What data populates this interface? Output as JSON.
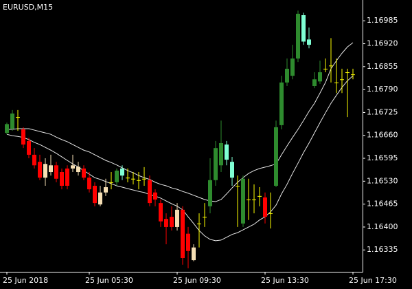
{
  "chart_data": {
    "type": "candlestick",
    "title": "EURUSD,M15",
    "categories": [
      "25 Jun 2018",
      null,
      null,
      null,
      null,
      null,
      null,
      null,
      null,
      null,
      null,
      null,
      null,
      null,
      null,
      "25 Jun 05:30",
      null,
      null,
      null,
      null,
      null,
      null,
      null,
      null,
      null,
      null,
      null,
      null,
      null,
      null,
      null,
      "25 Jun 09:30",
      null,
      null,
      null,
      null,
      null,
      null,
      null,
      null,
      null,
      null,
      null,
      null,
      null,
      null,
      null,
      "25 Jun 13:30",
      null,
      null,
      null,
      null,
      null,
      null,
      null,
      null,
      null,
      null,
      null,
      null,
      null,
      null,
      null,
      "25 Jun 17:30"
    ],
    "open": [
      1.16667,
      1.16679,
      1.16712,
      1.16677,
      1.16644,
      1.16605,
      1.16585,
      1.1654,
      1.16556,
      1.16575,
      1.16556,
      1.16566,
      1.16566,
      1.16556,
      1.16566,
      1.1654,
      1.16517,
      1.16464,
      1.16498,
      1.16527,
      1.16527,
      1.16546,
      1.1654,
      1.16537,
      1.16533,
      1.16537,
      1.16533,
      1.16498,
      1.16468,
      1.16423,
      1.16429,
      1.164,
      1.16449,
      1.16381,
      1.16306,
      1.1641,
      1.16429,
      1.16459,
      1.16533,
      1.16575,
      1.16591,
      1.1654,
      1.16517,
      1.1641,
      1.16478,
      1.16478,
      1.16488,
      1.16484,
      1.16439,
      1.16517,
      1.16689,
      1.1681,
      1.16829,
      1.16878,
      1.16926,
      1.16917,
      1.168,
      1.16813,
      1.16849,
      1.16858,
      1.1681,
      1.16819,
      1.16839,
      1.16833
    ],
    "high": [
      1.16696,
      1.16732,
      1.16732,
      1.16683,
      1.16653,
      1.16624,
      1.16605,
      1.16595,
      1.16605,
      1.16585,
      1.16566,
      1.16575,
      1.16605,
      1.16585,
      1.16575,
      1.16556,
      1.16527,
      1.16517,
      1.16537,
      1.16556,
      1.16566,
      1.16575,
      1.16566,
      1.16556,
      1.16556,
      1.1657,
      1.16546,
      1.16507,
      1.16478,
      1.16439,
      1.16459,
      1.16468,
      1.16459,
      1.164,
      1.16351,
      1.16439,
      1.16468,
      1.16595,
      1.16644,
      1.16702,
      1.16644,
      1.16599,
      1.16546,
      1.16546,
      1.16537,
      1.16521,
      1.16513,
      1.16498,
      1.16498,
      1.16702,
      1.16829,
      1.16878,
      1.16917,
      1.17014,
      1.17008,
      1.16966,
      1.16839,
      1.16872,
      1.16878,
      1.16936,
      1.16878,
      1.16849,
      1.16849,
      1.16849
    ],
    "low": [
      1.16663,
      1.16673,
      1.16673,
      1.16624,
      1.16595,
      1.16566,
      1.16533,
      1.16517,
      1.16546,
      1.16527,
      1.16507,
      1.16507,
      1.16556,
      1.16546,
      1.16533,
      1.16498,
      1.16459,
      1.16459,
      1.16488,
      1.16507,
      1.16517,
      1.16533,
      1.16527,
      1.16521,
      1.16507,
      1.16517,
      1.16459,
      1.16459,
      1.164,
      1.16351,
      1.1639,
      1.1639,
      1.16293,
      1.16283,
      1.16303,
      1.16342,
      1.164,
      1.16439,
      1.16517,
      1.16556,
      1.16575,
      1.16517,
      1.164,
      1.164,
      1.1642,
      1.16439,
      1.16459,
      1.1641,
      1.16396,
      1.16513,
      1.16677,
      1.168,
      1.16819,
      1.16868,
      1.16917,
      1.16907,
      1.16794,
      1.16806,
      1.16839,
      1.1681,
      1.1678,
      1.1678,
      1.16712,
      1.16819
    ],
    "close": [
      1.16692,
      1.16722,
      1.16712,
      1.16634,
      1.16605,
      1.16575,
      1.1654,
      1.16579,
      1.16575,
      1.16537,
      1.16517,
      1.16517,
      1.16575,
      1.16571,
      1.1654,
      1.16507,
      1.16468,
      1.16498,
      1.16513,
      1.16527,
      1.1656,
      1.16566,
      1.1654,
      1.16537,
      1.16533,
      1.16537,
      1.16468,
      1.16478,
      1.16416,
      1.164,
      1.164,
      1.16449,
      1.16312,
      1.16332,
      1.16342,
      1.1641,
      1.16429,
      1.16533,
      1.16624,
      1.16638,
      1.16634,
      1.16585,
      1.16517,
      1.16537,
      1.16478,
      1.16478,
      1.16488,
      1.16429,
      1.16439,
      1.16683,
      1.1681,
      1.16849,
      1.16878,
      1.17005,
      1.17001,
      1.16932,
      1.16819,
      1.16839,
      1.16849,
      1.16858,
      1.1681,
      1.16819,
      1.16839,
      1.16833
    ],
    "colors": [
      "#2e8b2e",
      "#2e8b2e",
      "#ffff00",
      "#ff0000",
      "#ff0000",
      "#ff0000",
      "#ff0000",
      "#f5deb3",
      "#f5deb3",
      "#ff0000",
      "#ff0000",
      "#ff0000",
      "#f5deb3",
      "#f5deb3",
      "#ff0000",
      "#ff0000",
      "#ff0000",
      "#f5deb3",
      "#f5deb3",
      "#ffff00",
      "#2e8b2e",
      "#7fffd4",
      "#ffff00",
      "#ffff00",
      "#ffff00",
      "#ffff00",
      "#ff0000",
      "#ff0000",
      "#ff0000",
      "#ff0000",
      "#ff0000",
      "#f5deb3",
      "#ff0000",
      "#ff0000",
      "#f5deb3",
      "#ffff00",
      "#ffff00",
      "#2e8b2e",
      "#2e8b2e",
      "#2e8b2e",
      "#7fffd4",
      "#7fffd4",
      "#ffff00",
      "#2e8b2e",
      "#ffff00",
      "#ffff00",
      "#ffff00",
      "#ff0000",
      "#ffff00",
      "#2e8b2e",
      "#2e8b2e",
      "#2e8b2e",
      "#2e8b2e",
      "#2e8b2e",
      "#7fffd4",
      "#7fffd4",
      "#2e8b2e",
      "#2e8b2e",
      "#ffff00",
      "#ffff00",
      "#ffff00",
      "#ffff00",
      "#ffff00",
      "#ffff00"
    ],
    "lines": [
      {
        "color": "#e6e6e6",
        "values": [
          1.16677,
          1.16677,
          1.16679,
          1.16679,
          1.16679,
          1.16675,
          1.16671,
          1.16667,
          1.16663,
          1.16655,
          1.16648,
          1.16642,
          1.16634,
          1.16626,
          1.16618,
          1.16613,
          1.16605,
          1.16597,
          1.16589,
          1.16583,
          1.16576,
          1.16568,
          1.1656,
          1.16554,
          1.16546,
          1.1654,
          1.16535,
          1.16527,
          1.16521,
          1.16517,
          1.16511,
          1.16507,
          1.16501,
          1.16496,
          1.1649,
          1.16484,
          1.16478,
          1.16474,
          1.16472,
          1.16478,
          1.16494,
          1.16511,
          1.16527,
          1.1654,
          1.16552,
          1.1656,
          1.16566,
          1.1657,
          1.16574,
          1.16579,
          1.16605,
          1.1663,
          1.16654,
          1.16677,
          1.16702,
          1.16728,
          1.16751,
          1.1678,
          1.1681,
          1.16849,
          1.16872,
          1.16893,
          1.16911,
          1.16923
        ]
      },
      {
        "color": "#e6e6e6",
        "values": [
          1.16663,
          1.16659,
          1.16657,
          1.16654,
          1.16648,
          1.1664,
          1.16634,
          1.16626,
          1.16618,
          1.16609,
          1.16599,
          1.16589,
          1.16579,
          1.1657,
          1.1656,
          1.1655,
          1.1654,
          1.16535,
          1.16529,
          1.16523,
          1.16517,
          1.16513,
          1.16509,
          1.16505,
          1.16501,
          1.16498,
          1.16492,
          1.16488,
          1.16482,
          1.16474,
          1.16466,
          1.16459,
          1.16449,
          1.16429,
          1.1641,
          1.1639,
          1.16375,
          1.16365,
          1.16361,
          1.16363,
          1.16371,
          1.16379,
          1.16384,
          1.16392,
          1.164,
          1.16408,
          1.1642,
          1.16429,
          1.16443,
          1.16462,
          1.16494,
          1.16521,
          1.16552,
          1.16581,
          1.16611,
          1.16638,
          1.16667,
          1.16696,
          1.16724,
          1.16751,
          1.16774,
          1.16796,
          1.16815,
          1.16829
        ]
      }
    ],
    "ylim": [
      1.16273,
      1.17044
    ],
    "yticks": [
      1.16985,
      {
        "value": 1.1692,
        "label": "1.16920"
      },
      1.16855,
      {
        "value": 1.1679,
        "label": "1.16790"
      },
      1.16725,
      {
        "value": 1.1666,
        "label": "1.16660"
      },
      1.16595,
      {
        "value": 1.1653,
        "label": "1.16530"
      },
      1.16465,
      {
        "value": 1.164,
        "label": "1.16400"
      },
      1.16335
    ]
  }
}
